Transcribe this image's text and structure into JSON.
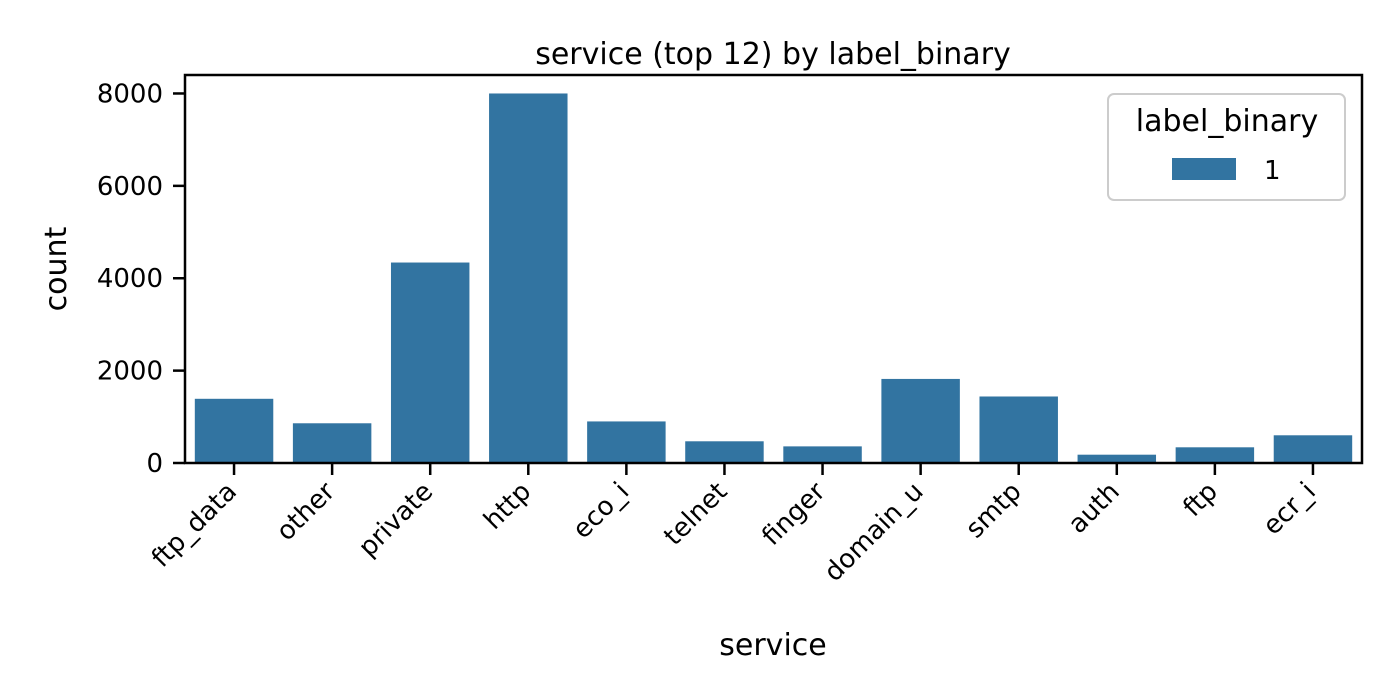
{
  "chart_data": {
    "type": "bar",
    "title": "service (top 12) by label_binary",
    "xlabel": "service",
    "ylabel": "count",
    "categories": [
      "ftp_data",
      "other",
      "private",
      "http",
      "eco_i",
      "telnet",
      "finger",
      "domain_u",
      "smtp",
      "auth",
      "ftp",
      "ecr_i"
    ],
    "series": [
      {
        "name": "1",
        "color": "#3274a1",
        "values": [
          1390,
          860,
          4340,
          8000,
          900,
          470,
          360,
          1820,
          1440,
          180,
          340,
          600
        ]
      }
    ],
    "yticks": [
      0,
      2000,
      4000,
      6000,
      8000
    ],
    "ylim": [
      0,
      8400
    ],
    "legend": {
      "title": "label_binary",
      "position": "top-right"
    },
    "grid": false
  }
}
